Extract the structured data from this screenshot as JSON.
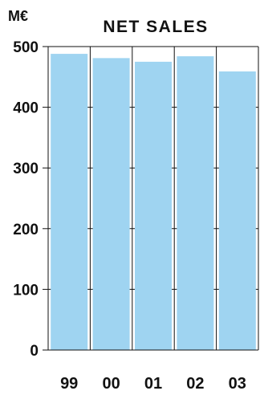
{
  "chart_data": {
    "type": "bar",
    "title": "NET SALES",
    "ylabel": "M€",
    "categories": [
      "99",
      "00",
      "01",
      "02",
      "03"
    ],
    "values": [
      488,
      481,
      475,
      484,
      459
    ],
    "ylim": [
      0,
      500
    ],
    "yticks": [
      "0",
      "100",
      "200",
      "300",
      "400",
      "500"
    ],
    "grid": true,
    "bar_color": "#9fd4f1"
  }
}
